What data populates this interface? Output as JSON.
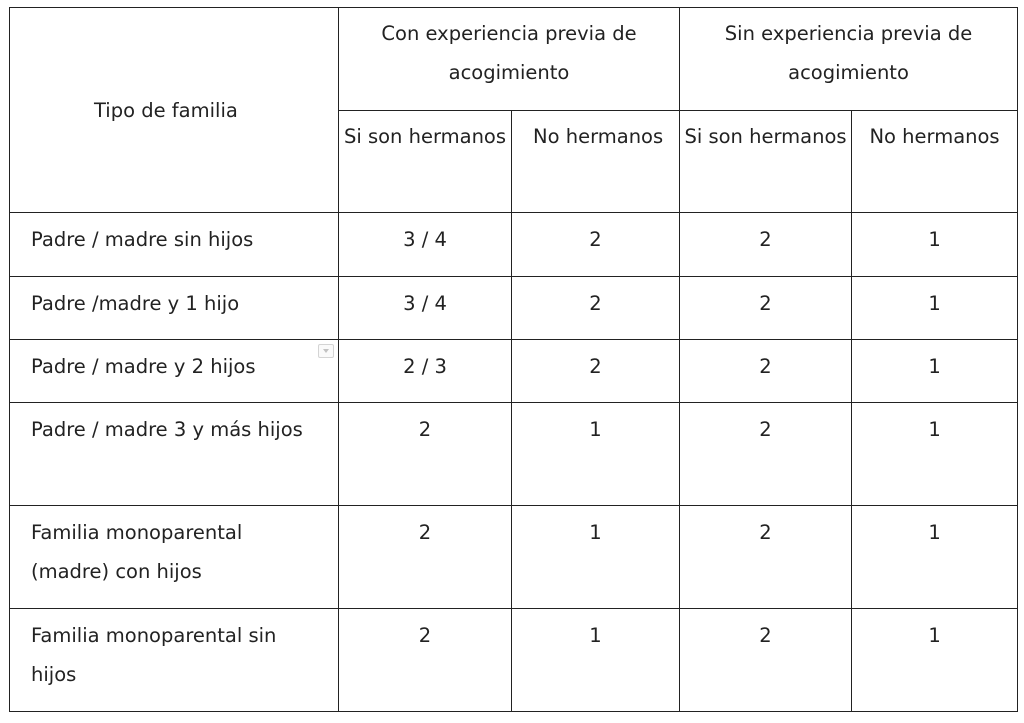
{
  "header": {
    "tipo_familia": "Tipo de familia",
    "con_experiencia": "Con experiencia previa de acogimiento",
    "sin_experiencia": "Sin experiencia previa de acogimiento",
    "si_son_hermanos": "Si son hermanos",
    "no_hermanos": "No hermanos"
  },
  "rows": [
    {
      "label": "Padre / madre sin hijos",
      "values": [
        "3 / 4",
        "2",
        "2",
        "1"
      ]
    },
    {
      "label": "Padre /madre y 1 hijo",
      "values": [
        "3 / 4",
        "2",
        "2",
        "1"
      ]
    },
    {
      "label": "Padre / madre y 2 hijos",
      "values": [
        "2 / 3",
        "2",
        "2",
        "1"
      ]
    },
    {
      "label": "Padre / madre 3 y más hijos",
      "values": [
        "2",
        "1",
        "2",
        "1"
      ]
    },
    {
      "label": "Familia monoparental (madre) con hijos",
      "values": [
        "2",
        "1",
        "2",
        "1"
      ]
    },
    {
      "label": "Familia monoparental sin hijos",
      "values": [
        "2",
        "1",
        "2",
        "1"
      ]
    }
  ],
  "icons": {
    "dropdown_marker": "chevron-down-icon"
  }
}
